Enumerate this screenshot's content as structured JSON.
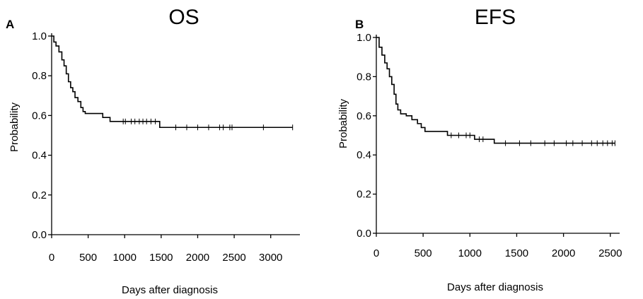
{
  "chart_data": [
    {
      "type": "line",
      "panel_label": "A",
      "title": "OS",
      "xlabel": "Days after diagnosis",
      "ylabel": "Probability",
      "xlim": [
        0,
        3400
      ],
      "ylim": [
        0.0,
        1.0
      ],
      "xticks": [
        0,
        500,
        1000,
        1500,
        2000,
        2500,
        3000
      ],
      "yticks": [
        0.0,
        0.2,
        0.4,
        0.6,
        0.8,
        1.0
      ],
      "ytick_labels": [
        "0.0",
        "0.2",
        "0.4",
        "0.6",
        "0.8",
        "1.0"
      ],
      "grid": false,
      "series": [
        {
          "step": [
            [
              0,
              1.0
            ],
            [
              30,
              0.97
            ],
            [
              60,
              0.95
            ],
            [
              100,
              0.92
            ],
            [
              140,
              0.88
            ],
            [
              170,
              0.85
            ],
            [
              200,
              0.81
            ],
            [
              230,
              0.77
            ],
            [
              260,
              0.74
            ],
            [
              290,
              0.72
            ],
            [
              320,
              0.69
            ],
            [
              360,
              0.67
            ],
            [
              400,
              0.64
            ],
            [
              430,
              0.62
            ],
            [
              460,
              0.61
            ],
            [
              700,
              0.59
            ],
            [
              800,
              0.57
            ],
            [
              1480,
              0.54
            ],
            [
              3300,
              0.54
            ]
          ],
          "censored": [
            [
              980,
              0.57
            ],
            [
              1010,
              0.57
            ],
            [
              1090,
              0.57
            ],
            [
              1140,
              0.57
            ],
            [
              1200,
              0.57
            ],
            [
              1250,
              0.57
            ],
            [
              1300,
              0.57
            ],
            [
              1360,
              0.57
            ],
            [
              1420,
              0.57
            ],
            [
              1700,
              0.54
            ],
            [
              1850,
              0.54
            ],
            [
              2000,
              0.54
            ],
            [
              2150,
              0.54
            ],
            [
              2300,
              0.54
            ],
            [
              2350,
              0.54
            ],
            [
              2440,
              0.54
            ],
            [
              2470,
              0.54
            ],
            [
              2900,
              0.54
            ],
            [
              3300,
              0.54
            ]
          ]
        }
      ]
    },
    {
      "type": "line",
      "panel_label": "B",
      "title": "EFS",
      "xlabel": "Days after diagnosis",
      "ylabel": "Probability",
      "xlim": [
        0,
        2600
      ],
      "ylim": [
        0.0,
        1.0
      ],
      "xticks": [
        0,
        500,
        1000,
        1500,
        2000,
        2500
      ],
      "xtick_labels": [
        "0",
        "500",
        "1000",
        "1500",
        "2000",
        "2500"
      ],
      "yticks": [
        0.0,
        0.2,
        0.4,
        0.6,
        0.8,
        1.0
      ],
      "ytick_labels": [
        "0.0",
        "0.2",
        "0.4",
        "0.6",
        "0.8",
        "1.0"
      ],
      "grid": false,
      "series": [
        {
          "step": [
            [
              0,
              1.0
            ],
            [
              30,
              0.95
            ],
            [
              60,
              0.91
            ],
            [
              90,
              0.87
            ],
            [
              115,
              0.84
            ],
            [
              140,
              0.8
            ],
            [
              165,
              0.76
            ],
            [
              190,
              0.71
            ],
            [
              210,
              0.66
            ],
            [
              230,
              0.63
            ],
            [
              260,
              0.61
            ],
            [
              320,
              0.6
            ],
            [
              380,
              0.58
            ],
            [
              440,
              0.56
            ],
            [
              480,
              0.54
            ],
            [
              520,
              0.52
            ],
            [
              760,
              0.5
            ],
            [
              1050,
              0.48
            ],
            [
              1260,
              0.46
            ],
            [
              2550,
              0.46
            ]
          ],
          "censored": [
            [
              800,
              0.5
            ],
            [
              880,
              0.5
            ],
            [
              960,
              0.5
            ],
            [
              1000,
              0.5
            ],
            [
              1100,
              0.48
            ],
            [
              1140,
              0.48
            ],
            [
              1380,
              0.46
            ],
            [
              1530,
              0.46
            ],
            [
              1650,
              0.46
            ],
            [
              1800,
              0.46
            ],
            [
              1900,
              0.46
            ],
            [
              2030,
              0.46
            ],
            [
              2100,
              0.46
            ],
            [
              2200,
              0.46
            ],
            [
              2300,
              0.46
            ],
            [
              2360,
              0.46
            ],
            [
              2420,
              0.46
            ],
            [
              2470,
              0.46
            ],
            [
              2520,
              0.46
            ],
            [
              2550,
              0.46
            ]
          ]
        }
      ]
    }
  ]
}
